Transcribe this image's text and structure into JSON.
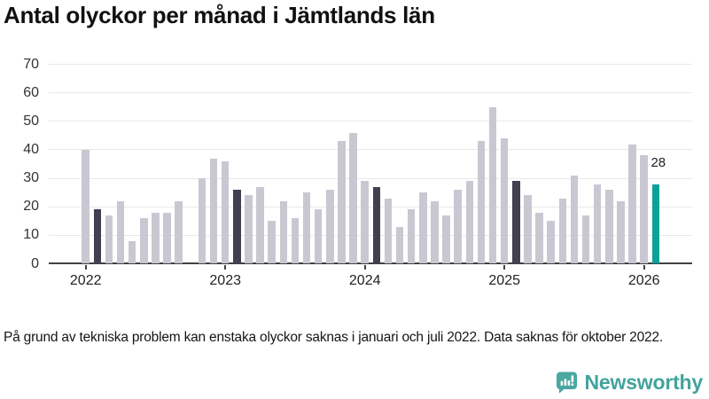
{
  "title": "Antal olyckor per månad i Jämtlands län",
  "footnote": "På grund av tekniska problem kan enstaka olyckor saknas i januari och juli 2022. Data saknas för oktober 2022.",
  "logo": {
    "text": "Newsworthy",
    "icon": "newsworthy-bubble-chart-icon"
  },
  "colors": {
    "bar": "#c9c8d2",
    "bar_reference": "#413f50",
    "bar_current": "#0ca198",
    "grid": "#e8e8e8",
    "axis": "#414141",
    "title_text": "#111111",
    "tick_text": "#333333",
    "annotation_text": "#222222",
    "logo_teal": "#43a39d"
  },
  "chart_data": {
    "type": "bar",
    "title": "Antal olyckor per månad i Jämtlands län",
    "xlabel": "",
    "ylabel": "",
    "ylim": [
      0,
      70
    ],
    "y_ticks": [
      0,
      10,
      20,
      30,
      40,
      50,
      60,
      70
    ],
    "grid": "horizontal",
    "legend_position": "none",
    "x": [
      "2022-01",
      "2022-02",
      "2022-03",
      "2022-04",
      "2022-05",
      "2022-06",
      "2022-07",
      "2022-08",
      "2022-09",
      "2022-10",
      "2022-11",
      "2022-12",
      "2023-01",
      "2023-02",
      "2023-03",
      "2023-04",
      "2023-05",
      "2023-06",
      "2023-07",
      "2023-08",
      "2023-09",
      "2023-10",
      "2023-11",
      "2023-12",
      "2024-01",
      "2024-02",
      "2024-03",
      "2024-04",
      "2024-05",
      "2024-06",
      "2024-07",
      "2024-08",
      "2024-09",
      "2024-10",
      "2024-11",
      "2024-12",
      "2025-01",
      "2025-02",
      "2025-03",
      "2025-04",
      "2025-05",
      "2025-06",
      "2025-07",
      "2025-08",
      "2025-09",
      "2025-10",
      "2025-11",
      "2025-12",
      "2026-01",
      "2026-02"
    ],
    "values": [
      40,
      19,
      17,
      22,
      8,
      16,
      18,
      18,
      22,
      null,
      30,
      37,
      36,
      26,
      24,
      27,
      15,
      22,
      16,
      25,
      19,
      26,
      43,
      46,
      29,
      27,
      23,
      13,
      19,
      25,
      22,
      17,
      26,
      29,
      43,
      55,
      44,
      29,
      24,
      18,
      15,
      23,
      31,
      17,
      28,
      26,
      22,
      42,
      38,
      28
    ],
    "missing_indices": [
      9
    ],
    "highlight_dark_indices": [
      1,
      13,
      25,
      37
    ],
    "highlight_current_index": 49,
    "annotation": {
      "index": 49,
      "text": "28"
    },
    "x_tick_labels": [
      "2022",
      "2023",
      "2024",
      "2025",
      "2026"
    ],
    "x_tick_indices": [
      0,
      12,
      24,
      36,
      48
    ]
  }
}
